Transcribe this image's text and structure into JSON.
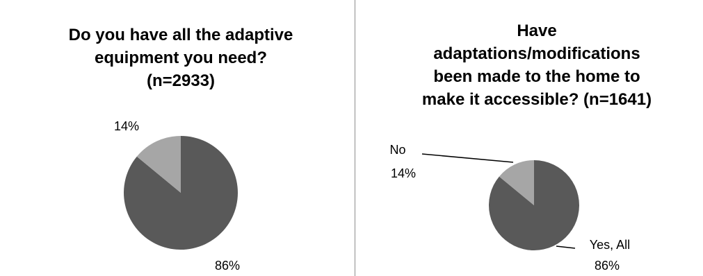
{
  "chart_data": [
    {
      "type": "pie",
      "title": "Do you have all the adaptive\nequipment you need?\n(n=2933)",
      "slices": [
        {
          "label": "",
          "value": 86,
          "value_label": "86%",
          "color": "#595959"
        },
        {
          "label": "",
          "value": 14,
          "value_label": "14%",
          "color": "#a6a6a6"
        }
      ]
    },
    {
      "type": "pie",
      "title": "Have\nadaptations/modifications\nbeen made to the home to\nmake it accessible?  (n=1641)",
      "slices": [
        {
          "label": "Yes, All",
          "value": 86,
          "value_label": "86%",
          "color": "#595959"
        },
        {
          "label": "No",
          "value": 14,
          "value_label": "14%",
          "color": "#a6a6a6"
        }
      ]
    }
  ]
}
